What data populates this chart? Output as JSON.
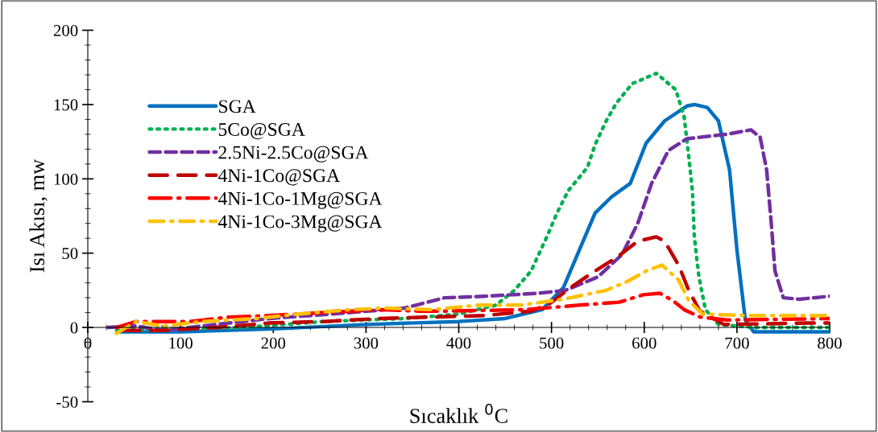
{
  "chart_data": {
    "type": "line",
    "xlabel": "Sıcaklık $^{0}$C",
    "ylabel": "Isı Akısı, mw",
    "xlim": [
      0,
      800
    ],
    "xticks": [
      0,
      100,
      200,
      300,
      400,
      500,
      600,
      700,
      800
    ],
    "ylim": [
      -50,
      200
    ],
    "yticks": [
      -50,
      0,
      50,
      100,
      150,
      200
    ],
    "grid": false,
    "legend": "top left",
    "marker": "none",
    "series": [
      {
        "name": "SGA",
        "color": "#0070c0",
        "line_style": "solid",
        "x": [
          35,
          100,
          200,
          300,
          400,
          450,
          490,
          513,
          530,
          547,
          565,
          585,
          602,
          622,
          646,
          654,
          668,
          680,
          692,
          700,
          709,
          718,
          750,
          800
        ],
        "values": [
          -3,
          -3,
          -1,
          2,
          4,
          6,
          12,
          27,
          52,
          77,
          88,
          97,
          124,
          139,
          149,
          150,
          148,
          139,
          106,
          52,
          5,
          -3,
          -3,
          -3
        ]
      },
      {
        "name": "5Co@SGA",
        "color": "#00b050",
        "line_style": "dotted",
        "x": [
          31,
          81,
          168,
          255,
          341,
          382,
          400,
          440,
          460,
          478,
          495,
          506,
          518,
          530,
          539,
          547,
          559,
          570,
          587,
          613,
          634,
          643,
          648,
          652,
          654,
          659,
          666,
          680,
          720,
          800
        ],
        "values": [
          -2,
          -1,
          0,
          4,
          6,
          8,
          9,
          15,
          25,
          38,
          61,
          77,
          92,
          101,
          108,
          123,
          139,
          151,
          164,
          171,
          160,
          142,
          115,
          92,
          61,
          34,
          12,
          2,
          0,
          0
        ]
      },
      {
        "name": "2.5Ni-2.5Co@SGA",
        "color": "#7030a0",
        "line_style": "dashed",
        "x": [
          22,
          52,
          81,
          124,
          196,
          283,
          341,
          385,
          428,
          486,
          515,
          550,
          576,
          593,
          608,
          626,
          646,
          660,
          689,
          715,
          725,
          732,
          737,
          741,
          750,
          767,
          800
        ],
        "values": [
          0,
          1,
          -2,
          1,
          6,
          10,
          13,
          20,
          21,
          23,
          25,
          34,
          49,
          70,
          97,
          119,
          127,
          128,
          130,
          133,
          128,
          106,
          70,
          38,
          20,
          19,
          21
        ]
      },
      {
        "name": "4Ni-1Co@SGA",
        "color": "#c00000",
        "line_style": "longdash",
        "x": [
          37,
          81,
          139,
          196,
          255,
          313,
          370,
          428,
          478,
          498,
          521,
          547,
          570,
          593,
          613,
          622,
          637,
          648,
          660,
          686,
          778,
          800
        ],
        "values": [
          -2,
          -2,
          0,
          3,
          4,
          6,
          7,
          8,
          11,
          16,
          27,
          38,
          47,
          58,
          61,
          58,
          42,
          25,
          11,
          2,
          3,
          3
        ]
      },
      {
        "name": "4Ni-1Co-1Mg@SGA",
        "color": "#ff0000",
        "line_style": "longdashdot",
        "x": [
          31,
          52,
          81,
          110,
          153,
          196,
          255,
          313,
          356,
          385,
          472,
          530,
          573,
          599,
          617,
          631,
          643,
          660,
          689,
          800
        ],
        "values": [
          0,
          4,
          4,
          4,
          7,
          8,
          10,
          12,
          11,
          11,
          12,
          15,
          17,
          22,
          23,
          18,
          12,
          7,
          5,
          6
        ]
      },
      {
        "name": "4Ni-1Co-3Mg@SGA",
        "color": "#ffc000",
        "line_style": "dashdot",
        "x": [
          31,
          52,
          81,
          124,
          182,
          226,
          283,
          321,
          370,
          422,
          466,
          513,
          559,
          582,
          602,
          619,
          637,
          648,
          663,
          709,
          800
        ],
        "values": [
          -4,
          4,
          1,
          4,
          6,
          9,
          12,
          13,
          12,
          15,
          15,
          19,
          25,
          31,
          38,
          42,
          32,
          18,
          9,
          8,
          8
        ]
      }
    ]
  }
}
